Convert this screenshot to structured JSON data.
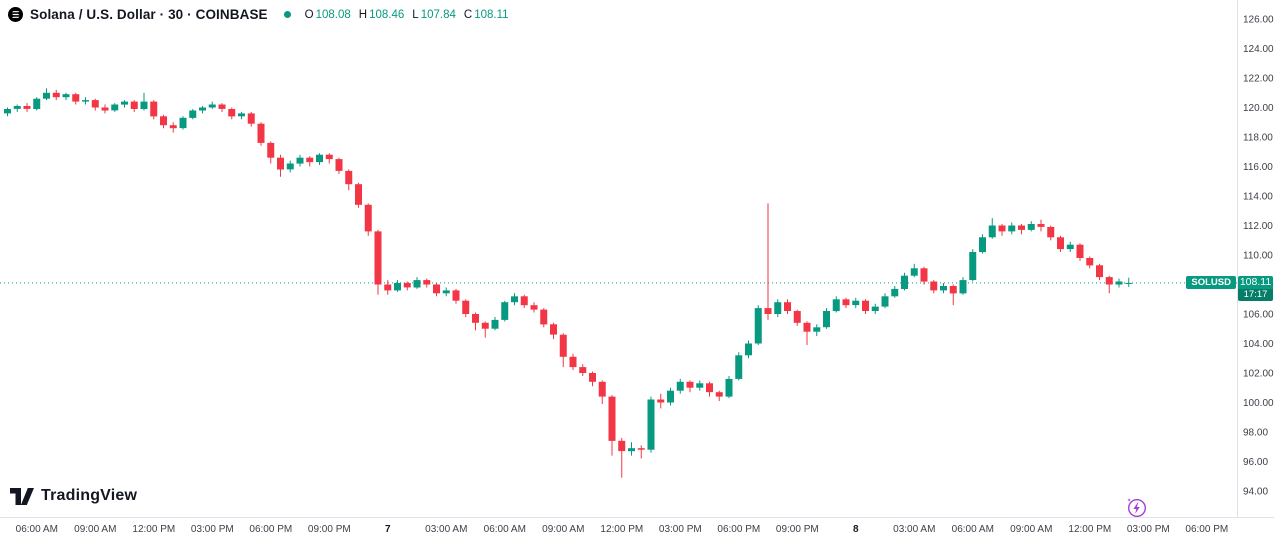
{
  "header": {
    "symbol_title": "Solana / U.S. Dollar · 30 · COINBASE",
    "ohlc": [
      {
        "k": "O",
        "v": "108.08"
      },
      {
        "k": "H",
        "v": "108.46"
      },
      {
        "k": "L",
        "v": "107.84"
      },
      {
        "k": "C",
        "v": "108.11"
      }
    ]
  },
  "price_label": {
    "symbol": "SOLUSD",
    "price": "108.11",
    "countdown": "17:17"
  },
  "watermark": "TradingView",
  "colors": {
    "up": "#089981",
    "down": "#f23645",
    "text": "#131722",
    "axis_text": "#3c4049",
    "border": "#e0e3eb",
    "flash": "#a13fd6"
  },
  "chart_data": {
    "type": "candlestick",
    "title": "Solana / U.S. Dollar",
    "symbol": "SOLUSD",
    "exchange": "COINBASE",
    "interval": "30",
    "ohlc_display": {
      "open": 108.08,
      "high": 108.46,
      "low": 107.84,
      "close": 108.11
    },
    "last_price": 108.11,
    "countdown": "17:17",
    "price_axis": {
      "min": 94,
      "max": 126,
      "tick_step": 2,
      "ticks": [
        "126.00",
        "124.00",
        "122.00",
        "120.00",
        "118.00",
        "116.00",
        "114.00",
        "112.00",
        "110.00",
        "108.00",
        "106.00",
        "104.00",
        "102.00",
        "100.00",
        "98.00",
        "96.00",
        "94.00"
      ]
    },
    "time_axis": {
      "labels": [
        {
          "t": "06:00 AM",
          "i": 3
        },
        {
          "t": "09:00 AM",
          "i": 9
        },
        {
          "t": "12:00 PM",
          "i": 15
        },
        {
          "t": "03:00 PM",
          "i": 21
        },
        {
          "t": "06:00 PM",
          "i": 27
        },
        {
          "t": "09:00 PM",
          "i": 33
        },
        {
          "t": "7",
          "i": 39,
          "bold": true
        },
        {
          "t": "03:00 AM",
          "i": 45
        },
        {
          "t": "06:00 AM",
          "i": 51
        },
        {
          "t": "09:00 AM",
          "i": 57
        },
        {
          "t": "12:00 PM",
          "i": 63
        },
        {
          "t": "03:00 PM",
          "i": 69
        },
        {
          "t": "06:00 PM",
          "i": 75
        },
        {
          "t": "09:00 PM",
          "i": 81
        },
        {
          "t": "8",
          "i": 87,
          "bold": true
        },
        {
          "t": "03:00 AM",
          "i": 93
        },
        {
          "t": "06:00 AM",
          "i": 99
        },
        {
          "t": "09:00 AM",
          "i": 105
        },
        {
          "t": "12:00 PM",
          "i": 111
        },
        {
          "t": "03:00 PM",
          "i": 117
        },
        {
          "t": "06:00 PM",
          "i": 123
        }
      ]
    },
    "candles": [
      [
        119.6,
        120.0,
        119.4,
        119.9
      ],
      [
        119.9,
        120.2,
        119.7,
        120.1
      ],
      [
        120.1,
        120.3,
        119.7,
        119.9
      ],
      [
        119.9,
        120.7,
        119.8,
        120.6
      ],
      [
        120.6,
        121.3,
        120.5,
        121.0
      ],
      [
        121.0,
        121.2,
        120.5,
        120.7
      ],
      [
        120.7,
        121.0,
        120.5,
        120.9
      ],
      [
        120.9,
        121.0,
        120.2,
        120.4
      ],
      [
        120.4,
        120.7,
        120.2,
        120.5
      ],
      [
        120.5,
        120.6,
        119.8,
        120.0
      ],
      [
        120.0,
        120.2,
        119.6,
        119.8
      ],
      [
        119.8,
        120.3,
        119.7,
        120.2
      ],
      [
        120.2,
        120.5,
        120.0,
        120.4
      ],
      [
        120.4,
        120.5,
        119.7,
        119.9
      ],
      [
        119.9,
        121.0,
        119.8,
        120.4
      ],
      [
        120.4,
        120.5,
        119.2,
        119.4
      ],
      [
        119.4,
        119.5,
        118.6,
        118.8
      ],
      [
        118.8,
        119.0,
        118.3,
        118.6
      ],
      [
        118.6,
        119.4,
        118.5,
        119.3
      ],
      [
        119.3,
        119.9,
        119.2,
        119.8
      ],
      [
        119.8,
        120.1,
        119.6,
        120.0
      ],
      [
        120.0,
        120.4,
        119.9,
        120.2
      ],
      [
        120.2,
        120.3,
        119.7,
        119.9
      ],
      [
        119.9,
        120.0,
        119.2,
        119.4
      ],
      [
        119.4,
        119.7,
        119.2,
        119.6
      ],
      [
        119.6,
        119.7,
        118.7,
        118.9
      ],
      [
        118.9,
        119.0,
        117.4,
        117.6
      ],
      [
        117.6,
        117.7,
        116.2,
        116.6
      ],
      [
        116.6,
        116.8,
        115.3,
        115.8
      ],
      [
        115.8,
        116.4,
        115.6,
        116.2
      ],
      [
        116.2,
        116.8,
        116.0,
        116.6
      ],
      [
        116.6,
        116.7,
        116.0,
        116.3
      ],
      [
        116.3,
        116.9,
        116.1,
        116.8
      ],
      [
        116.8,
        116.9,
        116.2,
        116.5
      ],
      [
        116.5,
        116.6,
        115.5,
        115.7
      ],
      [
        115.7,
        115.8,
        114.4,
        114.8
      ],
      [
        114.8,
        114.9,
        113.2,
        113.4
      ],
      [
        113.4,
        113.5,
        111.3,
        111.6
      ],
      [
        111.6,
        111.7,
        107.3,
        108.0
      ],
      [
        108.0,
        108.3,
        107.3,
        107.6
      ],
      [
        107.6,
        108.3,
        107.5,
        108.1
      ],
      [
        108.1,
        108.2,
        107.6,
        107.8
      ],
      [
        107.8,
        108.5,
        107.7,
        108.3
      ],
      [
        108.3,
        108.4,
        107.8,
        108.0
      ],
      [
        108.0,
        108.1,
        107.2,
        107.4
      ],
      [
        107.4,
        107.8,
        107.2,
        107.6
      ],
      [
        107.6,
        107.7,
        106.7,
        106.9
      ],
      [
        106.9,
        107.0,
        105.8,
        106.0
      ],
      [
        106.0,
        106.1,
        104.9,
        105.4
      ],
      [
        105.4,
        105.5,
        104.4,
        105.0
      ],
      [
        105.0,
        105.8,
        104.9,
        105.6
      ],
      [
        105.6,
        106.9,
        105.5,
        106.8
      ],
      [
        106.8,
        107.4,
        106.6,
        107.2
      ],
      [
        107.2,
        107.3,
        106.4,
        106.6
      ],
      [
        106.6,
        106.8,
        106.1,
        106.3
      ],
      [
        106.3,
        106.4,
        105.1,
        105.3
      ],
      [
        105.3,
        105.4,
        104.3,
        104.6
      ],
      [
        104.6,
        104.7,
        102.4,
        103.1
      ],
      [
        103.1,
        103.3,
        102.2,
        102.4
      ],
      [
        102.4,
        102.6,
        101.8,
        102.0
      ],
      [
        102.0,
        102.1,
        101.1,
        101.4
      ],
      [
        101.4,
        101.5,
        99.9,
        100.4
      ],
      [
        100.4,
        100.5,
        96.4,
        97.4
      ],
      [
        97.4,
        97.6,
        94.9,
        96.7
      ],
      [
        96.7,
        97.3,
        96.4,
        96.9
      ],
      [
        96.9,
        97.1,
        96.2,
        96.8
      ],
      [
        96.8,
        100.4,
        96.6,
        100.2
      ],
      [
        100.2,
        100.6,
        99.6,
        100.0
      ],
      [
        100.0,
        101.0,
        99.8,
        100.8
      ],
      [
        100.8,
        101.6,
        100.6,
        101.4
      ],
      [
        101.4,
        101.5,
        100.7,
        101.0
      ],
      [
        101.0,
        101.5,
        100.8,
        101.3
      ],
      [
        101.3,
        101.4,
        100.4,
        100.7
      ],
      [
        100.7,
        100.8,
        100.1,
        100.4
      ],
      [
        100.4,
        101.8,
        100.3,
        101.6
      ],
      [
        101.6,
        103.4,
        101.5,
        103.2
      ],
      [
        103.2,
        104.2,
        103.0,
        104.0
      ],
      [
        104.0,
        106.6,
        103.9,
        106.4
      ],
      [
        106.4,
        113.5,
        105.6,
        106.0
      ],
      [
        106.0,
        107.0,
        105.8,
        106.8
      ],
      [
        106.8,
        107.0,
        106.0,
        106.2
      ],
      [
        106.2,
        106.3,
        105.2,
        105.4
      ],
      [
        105.4,
        105.5,
        103.9,
        104.8
      ],
      [
        104.8,
        105.3,
        104.5,
        105.1
      ],
      [
        105.1,
        106.4,
        105.0,
        106.2
      ],
      [
        106.2,
        107.2,
        106.1,
        107.0
      ],
      [
        107.0,
        107.1,
        106.4,
        106.6
      ],
      [
        106.6,
        107.1,
        106.4,
        106.9
      ],
      [
        106.9,
        107.0,
        106.0,
        106.2
      ],
      [
        106.2,
        106.7,
        106.0,
        106.5
      ],
      [
        106.5,
        107.4,
        106.4,
        107.2
      ],
      [
        107.2,
        107.9,
        107.1,
        107.7
      ],
      [
        107.7,
        108.8,
        107.6,
        108.6
      ],
      [
        108.6,
        109.4,
        108.5,
        109.1
      ],
      [
        109.1,
        109.2,
        108.0,
        108.2
      ],
      [
        108.2,
        108.3,
        107.4,
        107.6
      ],
      [
        107.6,
        108.1,
        107.4,
        107.9
      ],
      [
        107.9,
        108.0,
        106.6,
        107.4
      ],
      [
        107.4,
        108.5,
        107.3,
        108.3
      ],
      [
        108.3,
        110.4,
        108.2,
        110.2
      ],
      [
        110.2,
        111.4,
        110.1,
        111.2
      ],
      [
        111.2,
        112.5,
        111.1,
        112.0
      ],
      [
        112.0,
        112.1,
        111.3,
        111.6
      ],
      [
        111.6,
        112.2,
        111.4,
        112.0
      ],
      [
        112.0,
        112.1,
        111.4,
        111.7
      ],
      [
        111.7,
        112.3,
        111.6,
        112.1
      ],
      [
        112.1,
        112.4,
        111.6,
        111.9
      ],
      [
        111.9,
        112.0,
        111.0,
        111.2
      ],
      [
        111.2,
        111.3,
        110.2,
        110.4
      ],
      [
        110.4,
        110.9,
        110.2,
        110.7
      ],
      [
        110.7,
        110.8,
        109.6,
        109.8
      ],
      [
        109.8,
        109.9,
        109.1,
        109.3
      ],
      [
        109.3,
        109.4,
        108.3,
        108.5
      ],
      [
        108.5,
        108.6,
        107.4,
        108.0
      ],
      [
        108.0,
        108.4,
        107.8,
        108.2
      ],
      [
        108.08,
        108.46,
        107.84,
        108.11
      ]
    ]
  }
}
